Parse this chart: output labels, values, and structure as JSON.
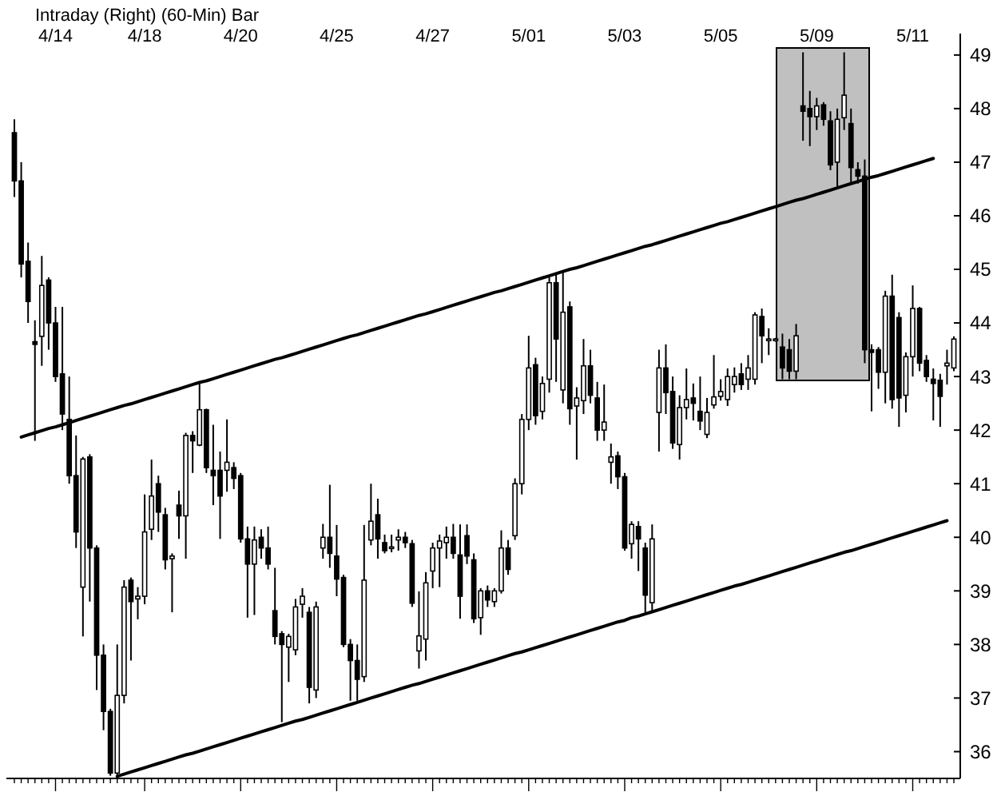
{
  "chart_data": {
    "type": "candlestick",
    "title": "Intraday (Right) (60-Min) Bar",
    "categories": [
      null,
      null,
      null,
      null,
      null,
      null,
      "4/14",
      null,
      null,
      null,
      null,
      null,
      null,
      null,
      null,
      null,
      null,
      null,
      null,
      "4/18",
      null,
      null,
      null,
      null,
      null,
      null,
      null,
      null,
      null,
      null,
      null,
      null,
      null,
      "4/20",
      null,
      null,
      null,
      null,
      null,
      null,
      null,
      null,
      null,
      null,
      null,
      null,
      null,
      "4/25",
      null,
      null,
      null,
      null,
      null,
      null,
      null,
      null,
      null,
      null,
      null,
      null,
      null,
      "4/27",
      null,
      null,
      null,
      null,
      null,
      null,
      null,
      null,
      null,
      null,
      null,
      null,
      null,
      "5/01",
      null,
      null,
      null,
      null,
      null,
      null,
      null,
      null,
      null,
      null,
      null,
      null,
      null,
      "5/03",
      null,
      null,
      null,
      null,
      null,
      null,
      null,
      null,
      null,
      null,
      null,
      null,
      null,
      "5/05",
      null,
      null,
      null,
      null,
      null,
      null,
      null,
      null,
      null,
      null,
      null,
      null,
      null,
      "5/09",
      null,
      null,
      null,
      null,
      null,
      null,
      null,
      null,
      null,
      null,
      null,
      null,
      null,
      "5/11",
      null,
      null,
      null,
      null,
      null,
      null
    ],
    "ohlc": [
      [
        47.55,
        47.8,
        46.35,
        46.65
      ],
      [
        46.65,
        47.0,
        44.85,
        45.1
      ],
      [
        45.15,
        45.5,
        44.0,
        44.4
      ],
      [
        43.65,
        44.05,
        41.8,
        43.6
      ],
      [
        43.75,
        45.25,
        43.2,
        44.7
      ],
      [
        44.8,
        44.85,
        43.5,
        44.0
      ],
      [
        44.0,
        44.3,
        42.9,
        43.0
      ],
      [
        43.05,
        44.3,
        42.0,
        42.3
      ],
      [
        42.2,
        43.0,
        41.0,
        41.15
      ],
      [
        41.15,
        41.9,
        39.8,
        40.1
      ],
      [
        39.07,
        41.5,
        38.15,
        41.46
      ],
      [
        41.5,
        41.55,
        38.8,
        39.8
      ],
      [
        39.8,
        39.85,
        37.15,
        37.8
      ],
      [
        37.8,
        38.0,
        36.4,
        36.75
      ],
      [
        36.75,
        36.8,
        35.55,
        35.6
      ],
      [
        35.6,
        38.0,
        35.55,
        37.05
      ],
      [
        37.05,
        39.2,
        36.9,
        39.07
      ],
      [
        39.2,
        39.25,
        37.7,
        38.8
      ],
      [
        38.85,
        39.07,
        38.47,
        38.9
      ],
      [
        38.9,
        40.8,
        38.75,
        40.1
      ],
      [
        40.15,
        41.45,
        39.95,
        40.77
      ],
      [
        41.0,
        41.15,
        40.1,
        40.47
      ],
      [
        40.42,
        40.55,
        39.4,
        39.58
      ],
      [
        39.6,
        39.7,
        38.6,
        39.65
      ],
      [
        40.6,
        40.87,
        39.97,
        40.4
      ],
      [
        40.4,
        41.95,
        39.6,
        41.9
      ],
      [
        41.9,
        41.98,
        41.2,
        41.8
      ],
      [
        41.72,
        42.87,
        41.7,
        42.38
      ],
      [
        42.38,
        42.4,
        41.2,
        41.3
      ],
      [
        41.25,
        42.1,
        40.6,
        41.15
      ],
      [
        41.25,
        41.6,
        39.97,
        40.77
      ],
      [
        41.25,
        42.2,
        40.85,
        41.4
      ],
      [
        41.3,
        41.4,
        40.9,
        41.1
      ],
      [
        41.15,
        41.2,
        39.9,
        39.97
      ],
      [
        39.97,
        40.2,
        38.5,
        39.5
      ],
      [
        39.5,
        40.2,
        38.55,
        39.95
      ],
      [
        40.0,
        40.15,
        39.6,
        39.8
      ],
      [
        39.8,
        40.2,
        39.4,
        39.5
      ],
      [
        38.63,
        39.43,
        38.0,
        38.15
      ],
      [
        38.2,
        38.25,
        36.55,
        38.0
      ],
      [
        37.95,
        38.2,
        37.3,
        38.15
      ],
      [
        37.9,
        38.85,
        37.8,
        38.7
      ],
      [
        38.75,
        39.05,
        38.5,
        38.9
      ],
      [
        38.6,
        38.7,
        36.9,
        37.2
      ],
      [
        37.15,
        38.8,
        37.0,
        38.7
      ],
      [
        39.8,
        40.25,
        39.6,
        40.0
      ],
      [
        40.0,
        40.98,
        39.43,
        39.7
      ],
      [
        39.65,
        40.23,
        38.9,
        39.22
      ],
      [
        39.25,
        39.3,
        37.95,
        38.0
      ],
      [
        38.0,
        38.1,
        36.95,
        37.7
      ],
      [
        37.7,
        38.0,
        36.95,
        37.35
      ],
      [
        37.4,
        40.23,
        37.3,
        39.2
      ],
      [
        39.95,
        41.0,
        39.85,
        40.3
      ],
      [
        40.42,
        40.72,
        39.6,
        39.97
      ],
      [
        39.9,
        40.05,
        39.7,
        39.75
      ],
      [
        39.8,
        40.05,
        39.72,
        39.82
      ],
      [
        39.95,
        40.15,
        39.75,
        40.0
      ],
      [
        40.0,
        40.1,
        39.8,
        39.9
      ],
      [
        39.88,
        39.95,
        38.7,
        38.77
      ],
      [
        37.88,
        38.99,
        37.55,
        38.16
      ],
      [
        38.1,
        39.35,
        37.7,
        39.15
      ],
      [
        39.37,
        39.9,
        39.05,
        39.8
      ],
      [
        39.8,
        40.05,
        39.07,
        39.93
      ],
      [
        39.9,
        40.2,
        39.6,
        40.0
      ],
      [
        40.0,
        40.25,
        39.6,
        39.7
      ],
      [
        39.67,
        40.24,
        38.48,
        38.9
      ],
      [
        40.03,
        40.24,
        39.5,
        39.65
      ],
      [
        39.58,
        39.7,
        38.4,
        38.48
      ],
      [
        38.5,
        39.05,
        38.18,
        39.0
      ],
      [
        39.0,
        39.1,
        38.7,
        38.83
      ],
      [
        38.8,
        39.05,
        38.7,
        39.0
      ],
      [
        39.0,
        40.13,
        38.95,
        39.8
      ],
      [
        39.8,
        39.95,
        39.3,
        39.4
      ],
      [
        40.03,
        41.1,
        39.95,
        41.0
      ],
      [
        41.0,
        42.3,
        40.8,
        42.2
      ],
      [
        42.2,
        43.76,
        42.0,
        43.16
      ],
      [
        43.22,
        43.35,
        42.1,
        42.27
      ],
      [
        42.35,
        43.0,
        42.2,
        42.87
      ],
      [
        42.95,
        44.85,
        42.7,
        44.75
      ],
      [
        44.75,
        44.9,
        42.9,
        43.7
      ],
      [
        42.75,
        44.95,
        42.5,
        44.2
      ],
      [
        44.3,
        44.4,
        42.1,
        42.4
      ],
      [
        42.45,
        42.8,
        41.45,
        42.6
      ],
      [
        42.55,
        43.7,
        42.3,
        43.2
      ],
      [
        43.2,
        43.5,
        42.5,
        42.65
      ],
      [
        42.6,
        42.9,
        41.8,
        42.0
      ],
      [
        42.0,
        42.85,
        41.8,
        42.15
      ],
      [
        41.4,
        41.75,
        41.0,
        41.5
      ],
      [
        41.52,
        41.6,
        40.9,
        41.13
      ],
      [
        41.13,
        41.2,
        39.75,
        39.8
      ],
      [
        39.88,
        40.3,
        39.6,
        40.24
      ],
      [
        40.2,
        40.3,
        39.37,
        39.97
      ],
      [
        39.8,
        39.9,
        38.6,
        38.92
      ],
      [
        38.78,
        40.24,
        38.6,
        39.97
      ],
      [
        42.33,
        43.5,
        41.6,
        43.16
      ],
      [
        43.16,
        43.6,
        42.3,
        42.7
      ],
      [
        42.72,
        43.0,
        41.65,
        41.76
      ],
      [
        41.73,
        42.65,
        41.45,
        42.42
      ],
      [
        42.42,
        43.15,
        42.2,
        42.57
      ],
      [
        42.6,
        42.87,
        42.18,
        42.5
      ],
      [
        42.35,
        43.0,
        42.0,
        42.17
      ],
      [
        41.92,
        42.6,
        41.85,
        42.33
      ],
      [
        42.47,
        43.4,
        42.4,
        42.62
      ],
      [
        42.63,
        42.95,
        42.55,
        42.72
      ],
      [
        42.57,
        43.15,
        42.45,
        43.0
      ],
      [
        42.85,
        43.17,
        42.7,
        43.0
      ],
      [
        43.05,
        43.25,
        42.75,
        42.85
      ],
      [
        42.95,
        43.4,
        42.75,
        43.16
      ],
      [
        42.95,
        44.2,
        42.85,
        44.15
      ],
      [
        44.12,
        44.27,
        43.25,
        43.76
      ],
      [
        43.67,
        43.9,
        43.4,
        43.7
      ],
      [
        43.68,
        43.72,
        43.65,
        43.7
      ],
      [
        43.55,
        43.8,
        42.95,
        43.16
      ],
      [
        43.5,
        43.7,
        42.95,
        43.1
      ],
      [
        43.1,
        43.98,
        42.95,
        43.76
      ],
      [
        48.05,
        49.05,
        47.4,
        47.95
      ],
      [
        48.0,
        48.33,
        47.3,
        47.85
      ],
      [
        47.85,
        48.2,
        47.6,
        48.05
      ],
      [
        48.07,
        48.12,
        47.68,
        47.8
      ],
      [
        47.77,
        47.95,
        46.85,
        46.95
      ],
      [
        47.0,
        48.0,
        46.55,
        47.8
      ],
      [
        47.83,
        49.05,
        47.6,
        48.25
      ],
      [
        47.72,
        48.0,
        46.6,
        46.9
      ],
      [
        46.86,
        47.0,
        46.6,
        46.74
      ],
      [
        46.74,
        47.05,
        43.25,
        43.5
      ],
      [
        43.5,
        43.6,
        42.35,
        43.45
      ],
      [
        43.5,
        43.55,
        42.77,
        43.08
      ],
      [
        43.08,
        44.6,
        42.5,
        44.5
      ],
      [
        44.5,
        44.9,
        42.4,
        42.57
      ],
      [
        44.1,
        44.2,
        42.06,
        42.6
      ],
      [
        42.65,
        43.45,
        42.33,
        43.37
      ],
      [
        43.37,
        44.7,
        43.0,
        44.27
      ],
      [
        44.27,
        44.3,
        43.1,
        43.25
      ],
      [
        43.3,
        43.4,
        42.9,
        43.0
      ],
      [
        42.95,
        43.15,
        42.18,
        42.87
      ],
      [
        42.93,
        43.05,
        42.06,
        42.63
      ],
      [
        43.2,
        43.5,
        42.85,
        43.25
      ],
      [
        43.16,
        43.75,
        43.1,
        43.7
      ]
    ],
    "color": "#000000",
    "series": [
      {
        "type": "line",
        "color": "#000000",
        "values": [
          null,
          41.87,
          41.91,
          41.95,
          41.99,
          42.03,
          42.06,
          42.1,
          42.14,
          42.18,
          42.22,
          42.26,
          42.3,
          42.34,
          42.38,
          42.42,
          42.46,
          42.49,
          42.53,
          42.57,
          42.61,
          42.65,
          42.69,
          42.73,
          42.77,
          42.81,
          42.85,
          42.89,
          42.92,
          42.96,
          43.0,
          43.04,
          43.08,
          43.12,
          43.16,
          43.2,
          43.24,
          43.28,
          43.32,
          43.35,
          43.39,
          43.43,
          43.47,
          43.51,
          43.55,
          43.59,
          43.63,
          43.67,
          43.71,
          43.75,
          43.78,
          43.82,
          43.86,
          43.9,
          43.94,
          43.98,
          44.02,
          44.06,
          44.1,
          44.14,
          44.17,
          44.21,
          44.25,
          44.29,
          44.33,
          44.37,
          44.41,
          44.45,
          44.49,
          44.53,
          44.57,
          44.6,
          44.64,
          44.68,
          44.72,
          44.76,
          44.8,
          44.84,
          44.88,
          44.92,
          44.96,
          45.0,
          45.03,
          45.07,
          45.11,
          45.15,
          45.19,
          45.23,
          45.27,
          45.31,
          45.35,
          45.39,
          45.43,
          45.46,
          45.5,
          45.54,
          45.58,
          45.62,
          45.66,
          45.7,
          45.74,
          45.78,
          45.82,
          45.86,
          45.89,
          45.93,
          45.97,
          46.01,
          46.05,
          46.09,
          46.13,
          46.17,
          46.21,
          46.25,
          46.29,
          46.32,
          46.36,
          46.4,
          46.44,
          46.48,
          46.52,
          46.56,
          46.6,
          46.64,
          46.68,
          46.72,
          46.75,
          46.79,
          46.83,
          46.87,
          46.91,
          46.95,
          46.99,
          47.03,
          47.07,
          null,
          null,
          null
        ]
      },
      {
        "type": "line",
        "color": "#000000",
        "values": [
          null,
          null,
          null,
          null,
          null,
          null,
          null,
          null,
          null,
          null,
          null,
          null,
          null,
          null,
          null,
          35.54,
          35.58,
          35.62,
          35.66,
          35.7,
          35.74,
          35.78,
          35.82,
          35.86,
          35.9,
          35.94,
          35.97,
          36.01,
          36.05,
          36.09,
          36.13,
          36.17,
          36.21,
          36.25,
          36.29,
          36.33,
          36.37,
          36.41,
          36.45,
          36.49,
          36.53,
          36.57,
          36.6,
          36.64,
          36.68,
          36.72,
          36.76,
          36.8,
          36.84,
          36.88,
          36.92,
          36.96,
          37.0,
          37.04,
          37.08,
          37.12,
          37.16,
          37.2,
          37.24,
          37.27,
          37.31,
          37.35,
          37.39,
          37.43,
          37.47,
          37.51,
          37.55,
          37.59,
          37.63,
          37.67,
          37.71,
          37.75,
          37.79,
          37.83,
          37.86,
          37.9,
          37.94,
          37.98,
          38.02,
          38.06,
          38.1,
          38.14,
          38.18,
          38.22,
          38.26,
          38.3,
          38.34,
          38.38,
          38.42,
          38.45,
          38.5,
          38.53,
          38.57,
          38.61,
          38.65,
          38.69,
          38.73,
          38.77,
          38.81,
          38.85,
          38.89,
          38.93,
          38.97,
          39.01,
          39.05,
          39.09,
          39.12,
          39.16,
          39.2,
          39.24,
          39.28,
          39.32,
          39.36,
          39.4,
          39.44,
          39.48,
          39.52,
          39.56,
          39.6,
          39.64,
          39.68,
          39.72,
          39.75,
          39.79,
          39.83,
          39.87,
          39.91,
          39.95,
          39.99,
          40.03,
          40.07,
          40.11,
          40.15,
          40.19,
          40.23,
          40.27,
          40.31,
          null
        ]
      }
    ],
    "ylim": [
      35.5,
      49.4
    ],
    "yticks": [
      36,
      37,
      38,
      39,
      40,
      41,
      42,
      43,
      44,
      45,
      46,
      47,
      48,
      49
    ]
  }
}
